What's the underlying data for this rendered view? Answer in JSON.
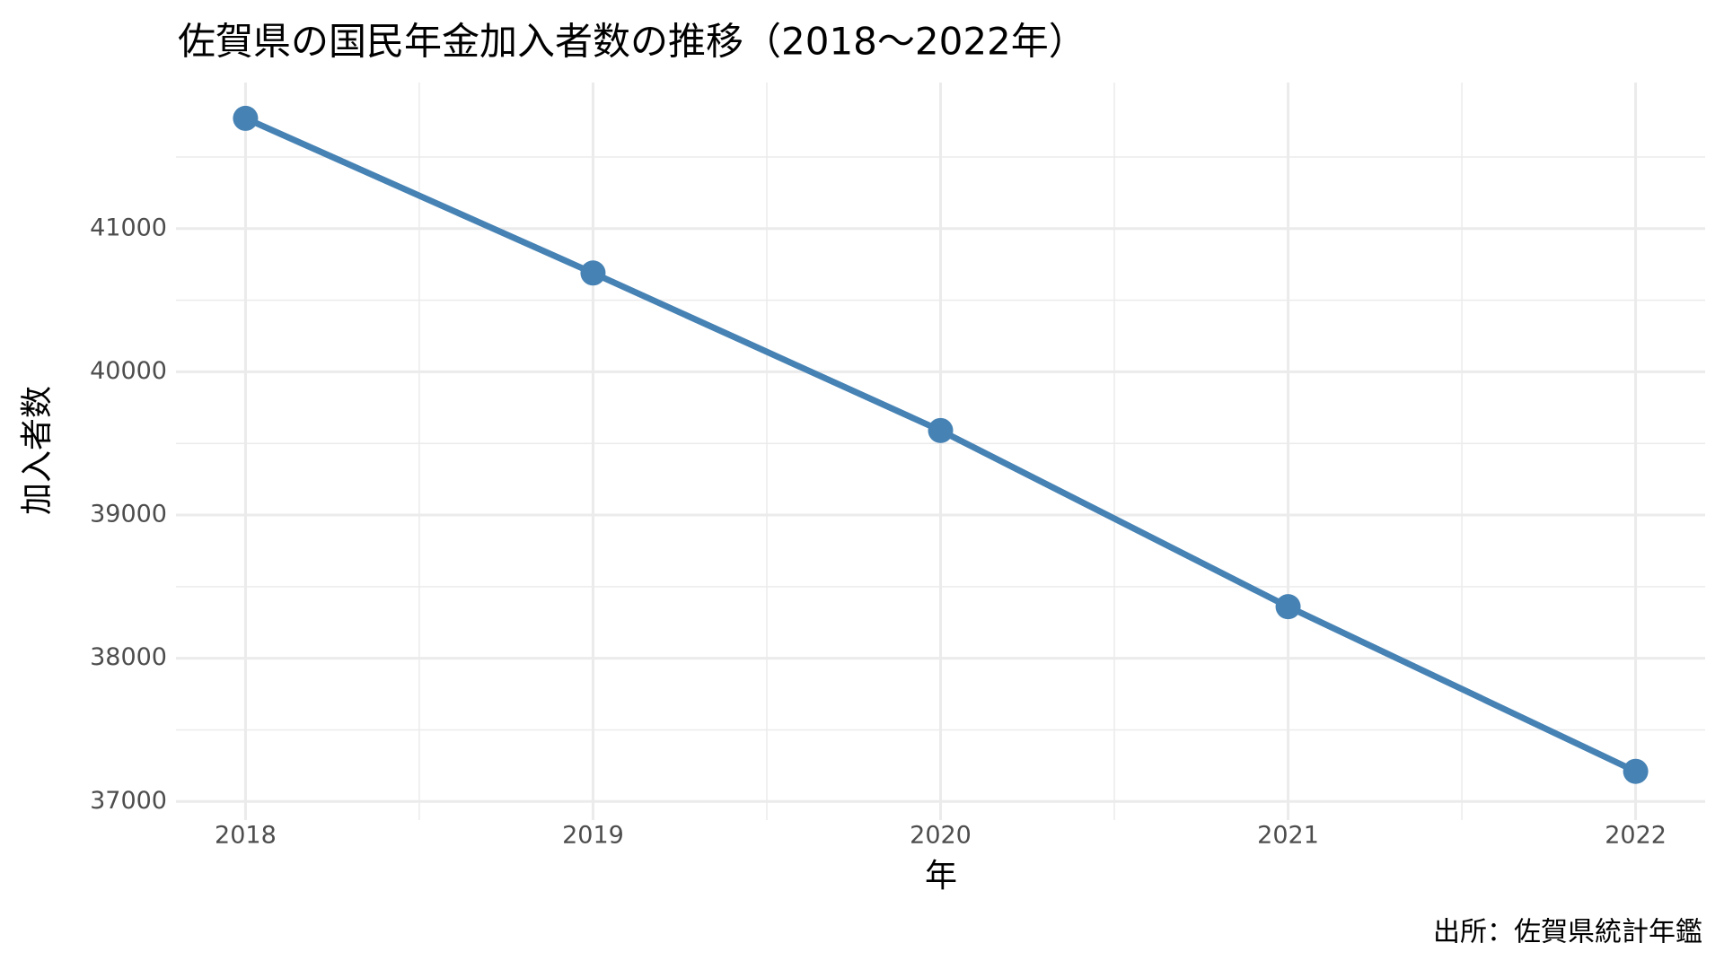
{
  "chart_data": {
    "type": "line",
    "title": "佐賀県の国民年金加入者数の推移（2018～2022年）",
    "x_label": "年",
    "y_label": "加入者数",
    "caption": "出所：佐賀県統計年鑑",
    "x": [
      2018,
      2019,
      2020,
      2021,
      2022
    ],
    "values": [
      41770,
      40690,
      39590,
      38360,
      37210
    ],
    "color": "#4682b4",
    "xlim": [
      2017.8,
      2022.2
    ],
    "xticks": [
      2018,
      2019,
      2020,
      2021,
      2022
    ],
    "ylim": [
      36870,
      42020
    ],
    "yticks": [
      37000,
      38000,
      39000,
      40000,
      41000
    ],
    "grid": true
  }
}
